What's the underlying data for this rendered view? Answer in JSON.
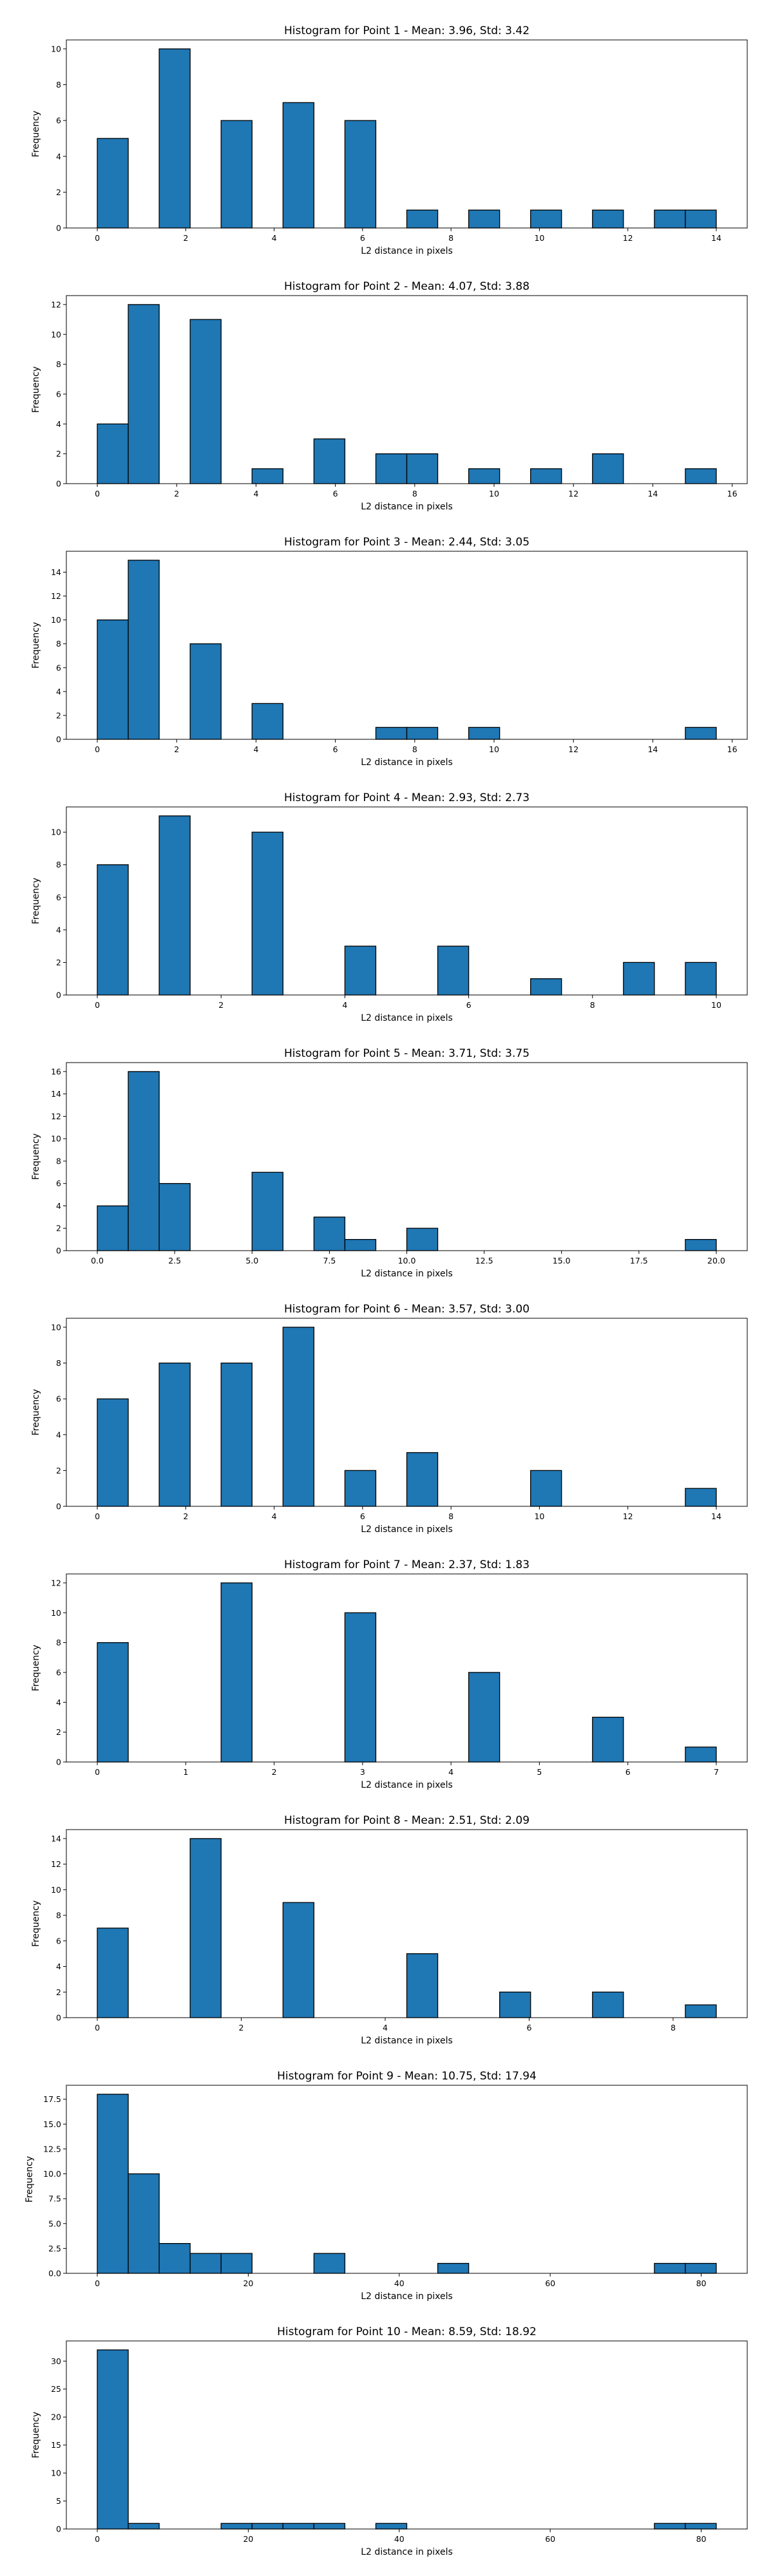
{
  "chart_data": [
    {
      "type": "bar",
      "title": "Histogram for Point 1 - Mean: 3.96, Std: 3.42",
      "xlabel": "L2 distance in pixels",
      "ylabel": "Frequency",
      "grid": false,
      "xlim": [
        -0.7,
        14.7
      ],
      "ylim": [
        0,
        10.5
      ],
      "xticks": [
        0,
        2,
        4,
        6,
        8,
        10,
        12,
        14
      ],
      "xtick_labels": [
        "0",
        "2",
        "4",
        "6",
        "8",
        "10",
        "12",
        "14"
      ],
      "yticks": [
        0,
        2,
        4,
        6,
        8,
        10
      ],
      "ytick_labels": [
        "0",
        "2",
        "4",
        "6",
        "8",
        "10"
      ],
      "bin_width": 0.7,
      "bins": [
        {
          "x": 0.0,
          "count": 5
        },
        {
          "x": 1.4,
          "count": 10
        },
        {
          "x": 2.8,
          "count": 6
        },
        {
          "x": 4.2,
          "count": 7
        },
        {
          "x": 5.6,
          "count": 6
        },
        {
          "x": 7.0,
          "count": 1
        },
        {
          "x": 8.4,
          "count": 1
        },
        {
          "x": 9.8,
          "count": 1
        },
        {
          "x": 11.2,
          "count": 1
        },
        {
          "x": 12.6,
          "count": 1
        },
        {
          "x": 13.3,
          "count": 1
        }
      ]
    },
    {
      "type": "bar",
      "title": "Histogram for Point 2 - Mean: 4.07, Std: 3.88",
      "xlabel": "L2 distance in pixels",
      "ylabel": "Frequency",
      "grid": false,
      "xlim": [
        -0.78,
        16.38
      ],
      "ylim": [
        0,
        12.6
      ],
      "xticks": [
        0,
        2,
        4,
        6,
        8,
        10,
        12,
        14,
        16
      ],
      "xtick_labels": [
        "0",
        "2",
        "4",
        "6",
        "8",
        "10",
        "12",
        "14",
        "16"
      ],
      "yticks": [
        0,
        2,
        4,
        6,
        8,
        10,
        12
      ],
      "ytick_labels": [
        "0",
        "2",
        "4",
        "6",
        "8",
        "10",
        "12"
      ],
      "bin_width": 0.78,
      "bins": [
        {
          "x": 0.0,
          "count": 4
        },
        {
          "x": 0.78,
          "count": 12
        },
        {
          "x": 2.34,
          "count": 11
        },
        {
          "x": 3.9,
          "count": 1
        },
        {
          "x": 5.46,
          "count": 3
        },
        {
          "x": 7.02,
          "count": 2
        },
        {
          "x": 7.8,
          "count": 2
        },
        {
          "x": 9.36,
          "count": 1
        },
        {
          "x": 10.92,
          "count": 1
        },
        {
          "x": 12.48,
          "count": 2
        },
        {
          "x": 14.82,
          "count": 1
        }
      ]
    },
    {
      "type": "bar",
      "title": "Histogram for Point 3 - Mean: 2.44, Std: 3.05",
      "xlabel": "L2 distance in pixels",
      "ylabel": "Frequency",
      "grid": false,
      "xlim": [
        -0.78,
        16.38
      ],
      "ylim": [
        0,
        15.75
      ],
      "xticks": [
        0,
        2,
        4,
        6,
        8,
        10,
        12,
        14,
        16
      ],
      "xtick_labels": [
        "0",
        "2",
        "4",
        "6",
        "8",
        "10",
        "12",
        "14",
        "16"
      ],
      "yticks": [
        0,
        2,
        4,
        6,
        8,
        10,
        12,
        14
      ],
      "ytick_labels": [
        "0",
        "2",
        "4",
        "6",
        "8",
        "10",
        "12",
        "14"
      ],
      "bin_width": 0.78,
      "bins": [
        {
          "x": 0.0,
          "count": 10
        },
        {
          "x": 0.78,
          "count": 15
        },
        {
          "x": 2.34,
          "count": 8
        },
        {
          "x": 3.9,
          "count": 3
        },
        {
          "x": 7.02,
          "count": 1
        },
        {
          "x": 7.8,
          "count": 1
        },
        {
          "x": 9.36,
          "count": 1
        },
        {
          "x": 14.82,
          "count": 1
        }
      ]
    },
    {
      "type": "bar",
      "title": "Histogram for Point 4 - Mean: 2.93, Std: 2.73",
      "xlabel": "L2 distance in pixels",
      "ylabel": "Frequency",
      "grid": false,
      "xlim": [
        -0.5,
        10.5
      ],
      "ylim": [
        0,
        11.55
      ],
      "xticks": [
        0,
        2,
        4,
        6,
        8,
        10
      ],
      "xtick_labels": [
        "0",
        "2",
        "4",
        "6",
        "8",
        "10"
      ],
      "yticks": [
        0,
        2,
        4,
        6,
        8,
        10
      ],
      "ytick_labels": [
        "0",
        "2",
        "4",
        "6",
        "8",
        "10"
      ],
      "bin_width": 0.5,
      "bins": [
        {
          "x": 0.0,
          "count": 8
        },
        {
          "x": 1.0,
          "count": 11
        },
        {
          "x": 2.5,
          "count": 10
        },
        {
          "x": 4.0,
          "count": 3
        },
        {
          "x": 5.5,
          "count": 3
        },
        {
          "x": 7.0,
          "count": 1
        },
        {
          "x": 8.5,
          "count": 2
        },
        {
          "x": 9.5,
          "count": 2
        }
      ]
    },
    {
      "type": "bar",
      "title": "Histogram for Point 5 - Mean: 3.71, Std: 3.75",
      "xlabel": "L2 distance in pixels",
      "ylabel": "Frequency",
      "grid": false,
      "xlim": [
        -1.0,
        21.0
      ],
      "ylim": [
        0,
        16.8
      ],
      "xticks": [
        0,
        2.5,
        5,
        7.5,
        10,
        12.5,
        15,
        17.5,
        20
      ],
      "xtick_labels": [
        "0.0",
        "2.5",
        "5.0",
        "7.5",
        "10.0",
        "12.5",
        "15.0",
        "17.5",
        "20.0"
      ],
      "yticks": [
        0,
        2,
        4,
        6,
        8,
        10,
        12,
        14,
        16
      ],
      "ytick_labels": [
        "0",
        "2",
        "4",
        "6",
        "8",
        "10",
        "12",
        "14",
        "16"
      ],
      "bin_width": 1.0,
      "bins": [
        {
          "x": 0.0,
          "count": 4
        },
        {
          "x": 1.0,
          "count": 16
        },
        {
          "x": 2.0,
          "count": 6
        },
        {
          "x": 5.0,
          "count": 7
        },
        {
          "x": 7.0,
          "count": 3
        },
        {
          "x": 8.0,
          "count": 1
        },
        {
          "x": 10.0,
          "count": 2
        },
        {
          "x": 19.0,
          "count": 1
        }
      ]
    },
    {
      "type": "bar",
      "title": "Histogram for Point 6 - Mean: 3.57, Std: 3.00",
      "xlabel": "L2 distance in pixels",
      "ylabel": "Frequency",
      "grid": false,
      "xlim": [
        -0.7,
        14.7
      ],
      "ylim": [
        0,
        10.5
      ],
      "xticks": [
        0,
        2,
        4,
        6,
        8,
        10,
        12,
        14
      ],
      "xtick_labels": [
        "0",
        "2",
        "4",
        "6",
        "8",
        "10",
        "12",
        "14"
      ],
      "yticks": [
        0,
        2,
        4,
        6,
        8,
        10
      ],
      "ytick_labels": [
        "0",
        "2",
        "4",
        "6",
        "8",
        "10"
      ],
      "bin_width": 0.7,
      "bins": [
        {
          "x": 0.0,
          "count": 6
        },
        {
          "x": 1.4,
          "count": 8
        },
        {
          "x": 2.8,
          "count": 8
        },
        {
          "x": 4.2,
          "count": 10
        },
        {
          "x": 5.6,
          "count": 2
        },
        {
          "x": 7.0,
          "count": 3
        },
        {
          "x": 9.8,
          "count": 2
        },
        {
          "x": 13.3,
          "count": 1
        }
      ]
    },
    {
      "type": "bar",
      "title": "Histogram for Point 7 - Mean: 2.37, Std: 1.83",
      "xlabel": "L2 distance in pixels",
      "ylabel": "Frequency",
      "grid": false,
      "xlim": [
        -0.35,
        7.35
      ],
      "ylim": [
        0,
        12.6
      ],
      "xticks": [
        0,
        1,
        2,
        3,
        4,
        5,
        6,
        7
      ],
      "xtick_labels": [
        "0",
        "1",
        "2",
        "3",
        "4",
        "5",
        "6",
        "7"
      ],
      "yticks": [
        0,
        2,
        4,
        6,
        8,
        10,
        12
      ],
      "ytick_labels": [
        "0",
        "2",
        "4",
        "6",
        "8",
        "10",
        "12"
      ],
      "bin_width": 0.35,
      "bins": [
        {
          "x": 0.0,
          "count": 8
        },
        {
          "x": 1.4,
          "count": 12
        },
        {
          "x": 2.8,
          "count": 10
        },
        {
          "x": 4.2,
          "count": 6
        },
        {
          "x": 5.6,
          "count": 3
        },
        {
          "x": 6.65,
          "count": 1
        }
      ]
    },
    {
      "type": "bar",
      "title": "Histogram for Point 8 - Mean: 2.51, Std: 2.09",
      "xlabel": "L2 distance in pixels",
      "ylabel": "Frequency",
      "grid": false,
      "xlim": [
        -0.43,
        9.03
      ],
      "ylim": [
        0,
        14.7
      ],
      "xticks": [
        0,
        2,
        4,
        6,
        8
      ],
      "xtick_labels": [
        "0",
        "2",
        "4",
        "6",
        "8"
      ],
      "yticks": [
        0,
        2,
        4,
        6,
        8,
        10,
        12,
        14
      ],
      "ytick_labels": [
        "0",
        "2",
        "4",
        "6",
        "8",
        "10",
        "12",
        "14"
      ],
      "bin_width": 0.43,
      "bins": [
        {
          "x": 0.0,
          "count": 7
        },
        {
          "x": 1.29,
          "count": 14
        },
        {
          "x": 2.58,
          "count": 9
        },
        {
          "x": 4.3,
          "count": 5
        },
        {
          "x": 5.59,
          "count": 2
        },
        {
          "x": 6.88,
          "count": 2
        },
        {
          "x": 8.17,
          "count": 1
        }
      ]
    },
    {
      "type": "bar",
      "title": "Histogram for Point 9 - Mean: 10.75, Std: 17.94",
      "xlabel": "L2 distance in pixels",
      "ylabel": "Frequency",
      "grid": false,
      "xlim": [
        -4.1,
        86.1
      ],
      "ylim": [
        0,
        18.9
      ],
      "xticks": [
        0,
        20,
        40,
        60,
        80
      ],
      "xtick_labels": [
        "0",
        "20",
        "40",
        "60",
        "80"
      ],
      "yticks": [
        0,
        2.5,
        5,
        7.5,
        10,
        12.5,
        15,
        17.5
      ],
      "ytick_labels": [
        "0.0",
        "2.5",
        "5.0",
        "7.5",
        "10.0",
        "12.5",
        "15.0",
        "17.5"
      ],
      "bin_width": 4.1,
      "bins": [
        {
          "x": 0.0,
          "count": 18
        },
        {
          "x": 4.1,
          "count": 10
        },
        {
          "x": 8.2,
          "count": 3
        },
        {
          "x": 12.3,
          "count": 2
        },
        {
          "x": 16.4,
          "count": 2
        },
        {
          "x": 28.7,
          "count": 2
        },
        {
          "x": 45.1,
          "count": 1
        },
        {
          "x": 73.8,
          "count": 1
        },
        {
          "x": 77.9,
          "count": 1
        }
      ]
    },
    {
      "type": "bar",
      "title": "Histogram for Point 10 - Mean: 8.59, Std: 18.92",
      "xlabel": "L2 distance in pixels",
      "ylabel": "Frequency",
      "grid": false,
      "xlim": [
        -4.1,
        86.1
      ],
      "ylim": [
        0,
        33.6
      ],
      "xticks": [
        0,
        20,
        40,
        60,
        80
      ],
      "xtick_labels": [
        "0",
        "20",
        "40",
        "60",
        "80"
      ],
      "yticks": [
        0,
        5,
        10,
        15,
        20,
        25,
        30
      ],
      "ytick_labels": [
        "0",
        "5",
        "10",
        "15",
        "20",
        "25",
        "30"
      ],
      "bin_width": 4.1,
      "bins": [
        {
          "x": 0.0,
          "count": 32
        },
        {
          "x": 4.1,
          "count": 1
        },
        {
          "x": 16.4,
          "count": 1
        },
        {
          "x": 20.5,
          "count": 1
        },
        {
          "x": 24.6,
          "count": 1
        },
        {
          "x": 28.7,
          "count": 1
        },
        {
          "x": 36.9,
          "count": 1
        },
        {
          "x": 73.8,
          "count": 1
        },
        {
          "x": 77.9,
          "count": 1
        }
      ]
    }
  ]
}
